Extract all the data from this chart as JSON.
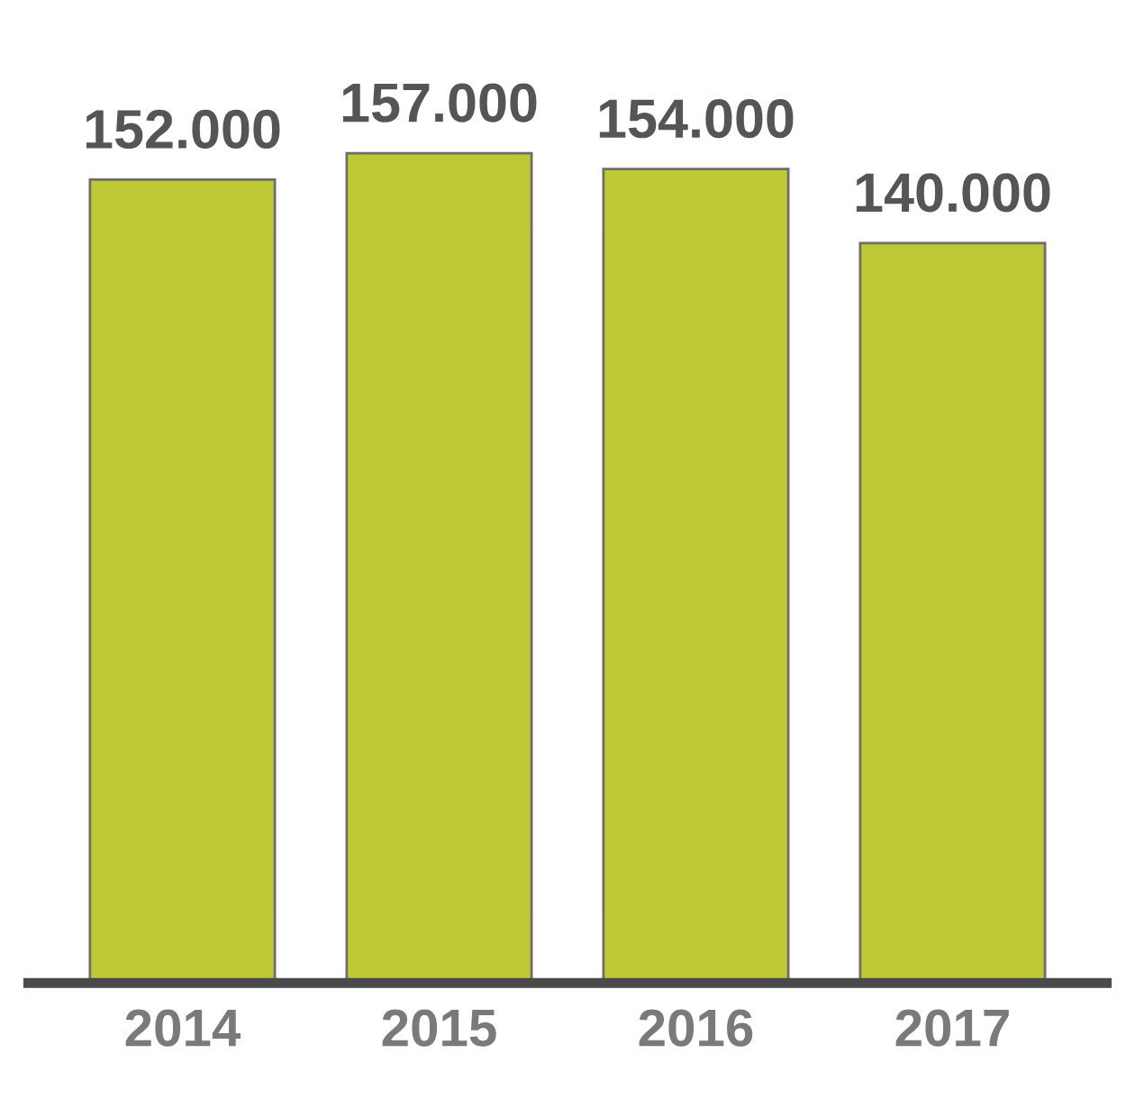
{
  "chart_data": {
    "type": "bar",
    "categories": [
      "2014",
      "2015",
      "2016",
      "2017"
    ],
    "values": [
      152000,
      157000,
      154000,
      140000
    ],
    "value_labels": [
      "152.000",
      "157.000",
      "154.000",
      "140.000"
    ],
    "color": "#bfc935",
    "grid": false,
    "legend": false
  }
}
